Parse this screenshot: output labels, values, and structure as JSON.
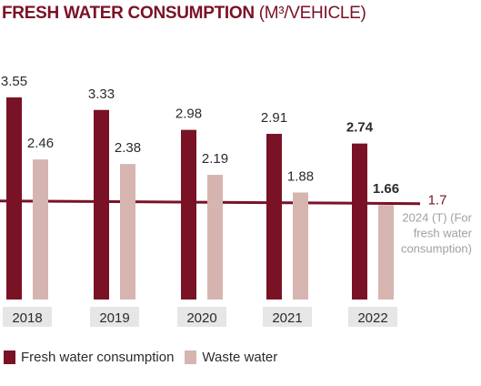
{
  "title": "FRESH WATER CONSUMPTION",
  "title_unit": "(M³/VEHICLE)",
  "colors": {
    "fresh": "#7a1226",
    "waste": "#d6b5b0",
    "target_line": "#7a1226",
    "year_box": "#e6e6e6",
    "text": "#2b2b2b"
  },
  "chart_data": {
    "type": "bar",
    "title": "FRESH WATER CONSUMPTION (M³/VEHICLE)",
    "categories": [
      "2018",
      "2019",
      "2020",
      "2021",
      "2022"
    ],
    "series": [
      {
        "name": "Fresh water consumption",
        "values": [
          3.55,
          3.33,
          2.98,
          2.91,
          2.74
        ]
      },
      {
        "name": "Waste water",
        "values": [
          2.46,
          2.38,
          2.19,
          1.88,
          1.66
        ]
      }
    ],
    "value_labels": {
      "fresh": [
        "3.55",
        "3.33",
        "2.98",
        "2.91",
        "2.74"
      ],
      "waste": [
        "2.46",
        "2.38",
        "2.19",
        "1.88",
        "1.66"
      ]
    },
    "target": {
      "value": 1.7,
      "value_label": "1.7",
      "label_lines": [
        "2024 (T) (For",
        "fresh water",
        "consumption)"
      ]
    },
    "ylim": [
      0,
      3.55
    ],
    "xlabel": "",
    "ylabel": "",
    "legend_position": "bottom-left",
    "grid": false
  }
}
